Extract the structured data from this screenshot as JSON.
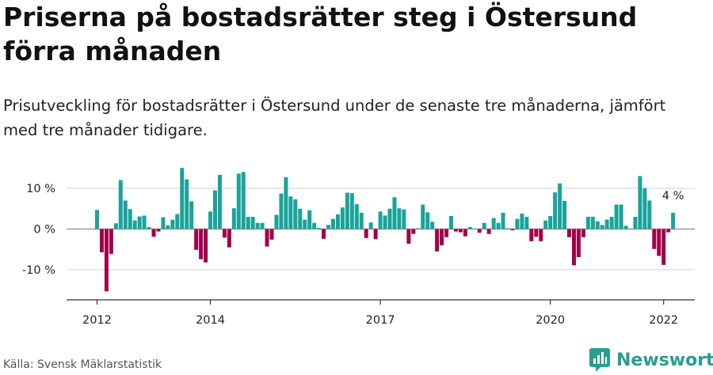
{
  "title": "Priserna på bostadsrätter steg i Östersund förra månaden",
  "subtitle": "Prisutveckling för bostadsrätter i Östersund under de senaste tre månaderna, jämfört med tre månader tidigare.",
  "source": "Källa: Svensk Mäklarstatistik",
  "logo": {
    "text": "Newsworthy",
    "icon": "bar-chart-icon"
  },
  "colors": {
    "positive": "#1aa39a",
    "negative": "#a3004a",
    "grid": "#d0d0d0",
    "zero": "#999999",
    "axis": "#333333",
    "brand": "#2a9d8f"
  },
  "chart_data": {
    "type": "bar",
    "title": "Priserna på bostadsrätter steg i Östersund förra månaden",
    "x_start": "2012-01",
    "x_end": "2022-03",
    "x_tick_labels": [
      {
        "date": "2012-01",
        "label": "2012"
      },
      {
        "date": "2014-01",
        "label": "2014"
      },
      {
        "date": "2017-01",
        "label": "2017"
      },
      {
        "date": "2020-01",
        "label": "2020"
      },
      {
        "date": "2022-01",
        "label": "2022"
      }
    ],
    "y_ticks": [
      {
        "value": 10,
        "label": "10 %"
      },
      {
        "value": 0,
        "label": "0 %"
      },
      {
        "value": -10,
        "label": "-10 %"
      }
    ],
    "ylim": [
      -17,
      16
    ],
    "grid": true,
    "last_value_label": "4 %",
    "values": [
      4.7,
      -5.7,
      -15.3,
      -6.1,
      1.4,
      12.0,
      7.0,
      4.9,
      2.1,
      3.1,
      3.3,
      0.5,
      -1.9,
      -0.6,
      2.9,
      0.9,
      2.3,
      3.7,
      15.0,
      12.2,
      6.8,
      -5.1,
      -7.4,
      -8.2,
      4.3,
      9.5,
      13.3,
      -2.1,
      -4.5,
      5.1,
      13.6,
      14.0,
      3.0,
      3.0,
      1.5,
      1.5,
      -4.3,
      -2.6,
      3.5,
      8.7,
      12.7,
      8.0,
      7.3,
      5.0,
      2.3,
      4.6,
      1.5,
      0.3,
      -2.4,
      1.0,
      2.5,
      3.6,
      5.3,
      8.9,
      8.8,
      6.1,
      4.0,
      -2.2,
      1.6,
      -2.5,
      4.3,
      3.3,
      5.0,
      7.8,
      5.1,
      4.8,
      -3.6,
      -1.2,
      0.2,
      6.0,
      4.1,
      1.8,
      -5.5,
      -4.0,
      -2.0,
      3.2,
      -0.6,
      -0.8,
      -1.8,
      0.5,
      0.1,
      -0.9,
      1.5,
      -1.2,
      2.7,
      1.5,
      4.0,
      0.2,
      -0.3,
      2.5,
      3.8,
      3.0,
      -3.0,
      -1.9,
      -3.0,
      2.1,
      3.2,
      9.0,
      11.2,
      6.9,
      -2.0,
      -8.9,
      -6.9,
      -2.0,
      3.0,
      3.0,
      1.9,
      1.0,
      2.3,
      3.0,
      6.0,
      6.0,
      0.8,
      0.1,
      3.0,
      13.0,
      10.0,
      7.0,
      -4.9,
      -6.6,
      -8.8,
      -0.8,
      4.0
    ]
  }
}
